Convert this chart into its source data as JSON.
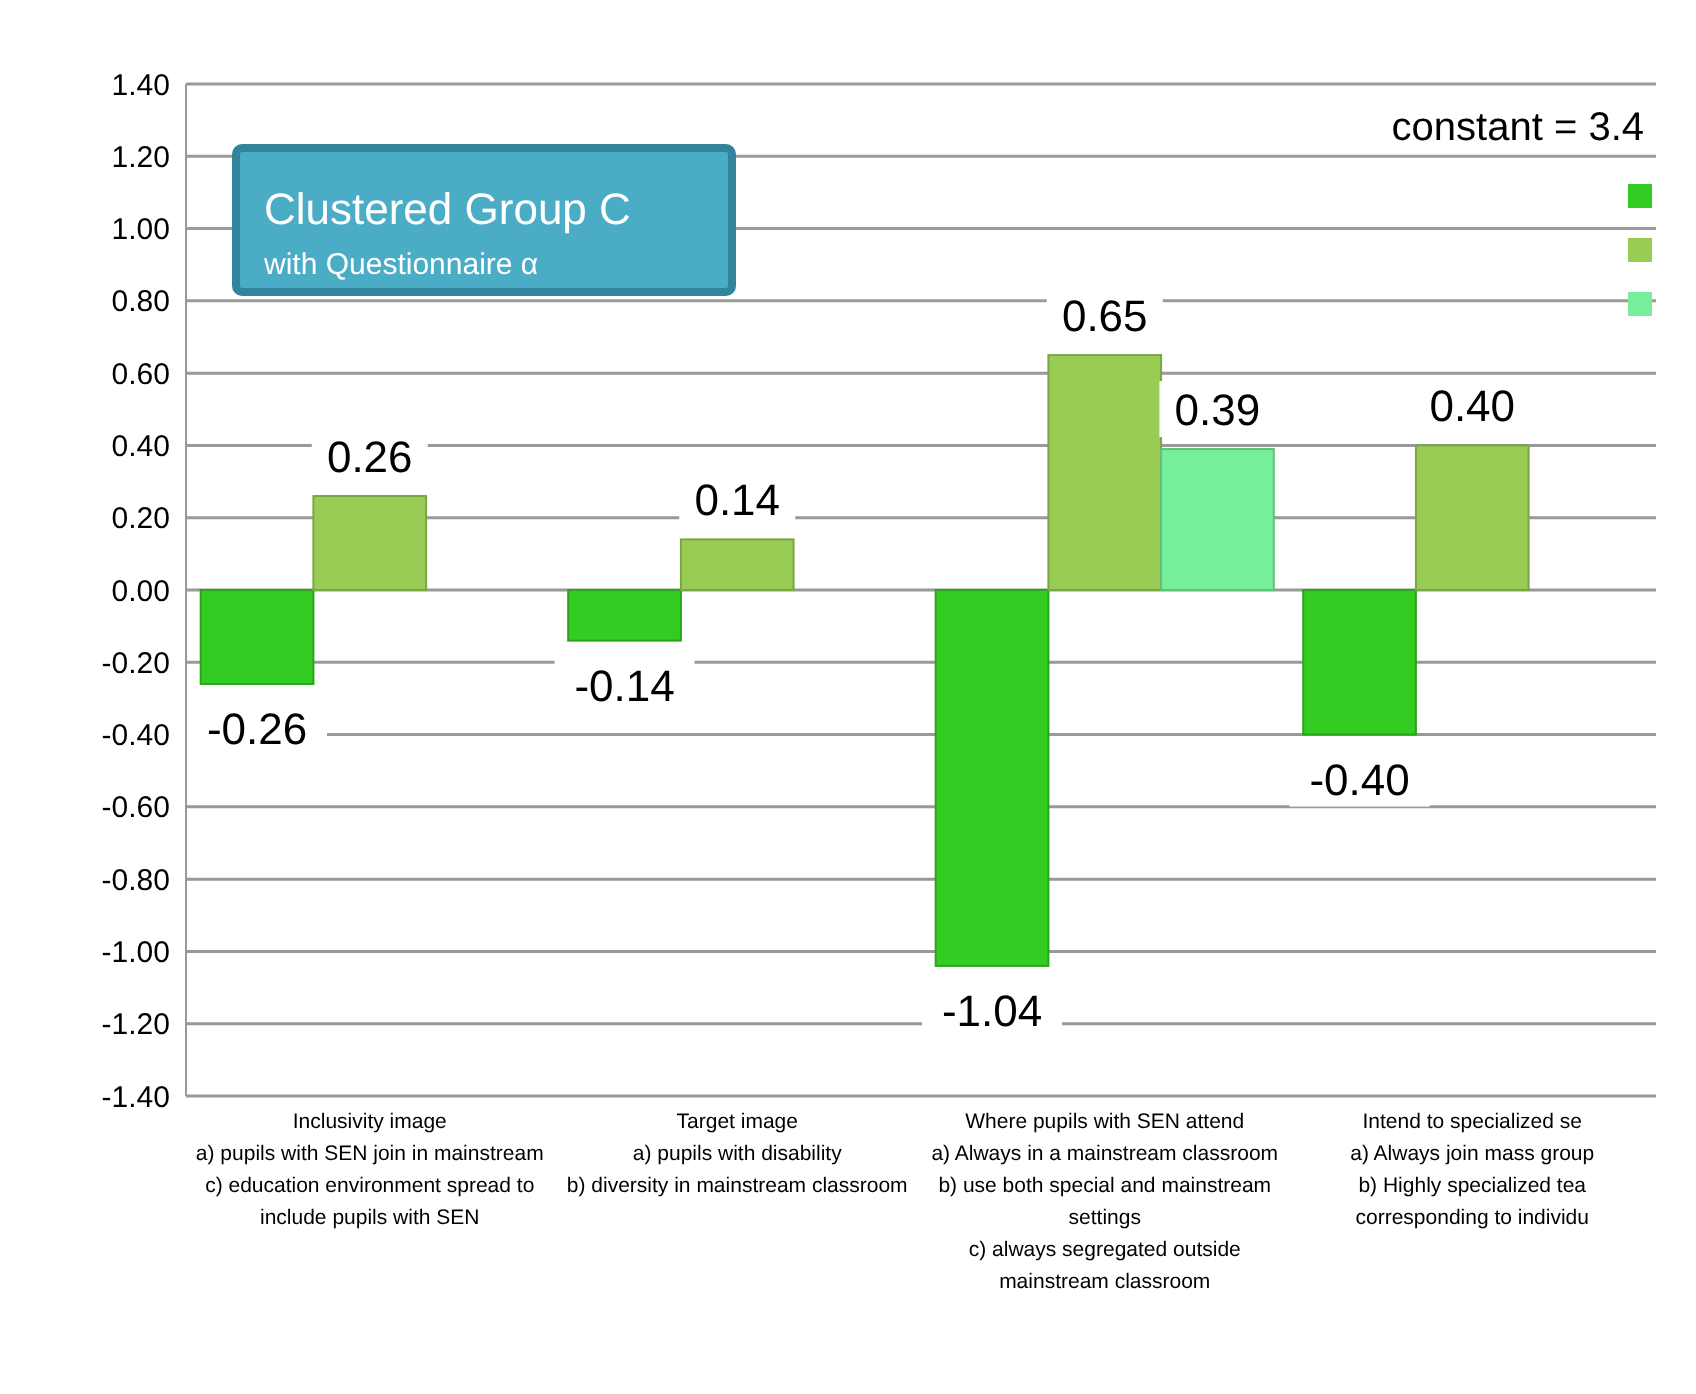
{
  "chart_data": {
    "type": "bar",
    "title": "Clustered Group C",
    "subtitle": "with Questionnaire α",
    "categories": [
      "Inclusivity image\na) pupils with SEN join in mainstream\nc) education environment spread to\ninclude pupils with SEN",
      "Target image\na) pupils with disability\nb) diversity in mainstream classroom",
      "Where pupils with SEN attend\na) Always in a mainstream classroom\nb) use both special and mainstream\nsettings\nc) always segregated outside\nmainstream classroom",
      "Intend to specialized se\na) Always join mass group\nb) Highly specialized tea\ncorresponding to individu"
    ],
    "series": [
      {
        "color": "#33cc22",
        "values": [
          -0.26,
          -0.14,
          -1.04,
          -0.4
        ],
        "value_labels": [
          "-0.26",
          "-0.14",
          "-1.04",
          "-0.40"
        ]
      },
      {
        "color": "#99cc55",
        "values": [
          0.26,
          0.14,
          0.65,
          0.4
        ],
        "value_labels": [
          "0.26",
          "0.14",
          "0.65",
          "0.40"
        ]
      },
      {
        "color": "#77ee99",
        "values": [
          null,
          null,
          0.39,
          null
        ],
        "value_labels": [
          null,
          null,
          "0.39",
          null
        ]
      }
    ],
    "ylim": [
      -1.4,
      1.4
    ],
    "yticks": [
      {
        "value": -1.4,
        "label": "-1.40"
      },
      {
        "value": -1.2,
        "label": "-1.20"
      },
      {
        "value": -1.0,
        "label": "-1.00"
      },
      {
        "value": -0.8,
        "label": "-0.80"
      },
      {
        "value": -0.6,
        "label": "-0.60"
      },
      {
        "value": -0.4,
        "label": "-0.40"
      },
      {
        "value": -0.2,
        "label": "-0.20"
      },
      {
        "value": 0,
        "label": "0.00"
      },
      {
        "value": 0.2,
        "label": "0.20"
      },
      {
        "value": 0.4,
        "label": "0.40"
      },
      {
        "value": 0.6,
        "label": "0.60"
      },
      {
        "value": 0.8,
        "label": "0.80"
      },
      {
        "value": 1.0,
        "label": "1.00"
      },
      {
        "value": 1.2,
        "label": "1.20"
      },
      {
        "value": 1.4,
        "label": "1.40"
      }
    ],
    "grid": "y",
    "annotations": [
      "constant = 3.4"
    ]
  }
}
